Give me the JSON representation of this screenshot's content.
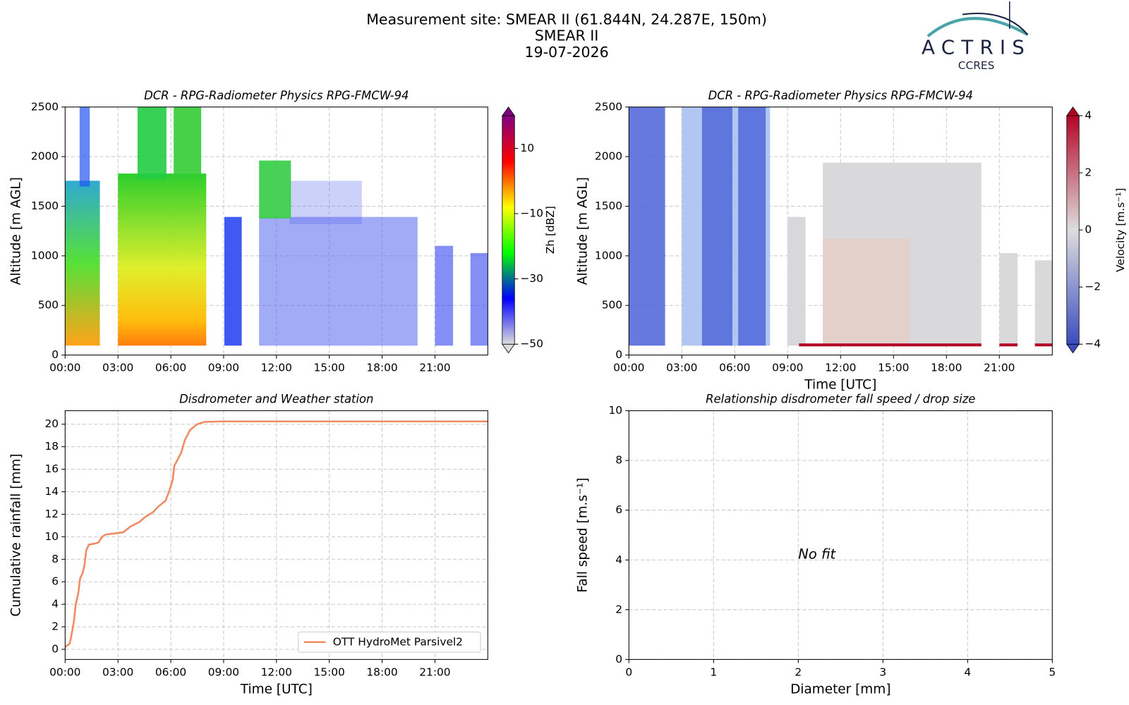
{
  "header": {
    "title_lines": [
      "Measurement site: SMEAR II (61.844N, 24.287E, 150m)",
      "SMEAR II",
      "19-07-2026"
    ],
    "logo": {
      "name": "ACTRIS",
      "sub": "CCRES"
    }
  },
  "chart_data": [
    {
      "type": "heatmap",
      "title": "DCR - RPG-Radiometer Physics RPG-FMCW-94",
      "ylabel": "Altitude [m AGL]",
      "xlim": [
        0,
        24
      ],
      "xticks": [
        {
          "value": 0,
          "label": "00:00"
        },
        {
          "value": 3,
          "label": "03:00"
        },
        {
          "value": 6,
          "label": "06:00"
        },
        {
          "value": 9,
          "label": "09:00"
        },
        {
          "value": 12,
          "label": "12:00"
        },
        {
          "value": 15,
          "label": "15:00"
        },
        {
          "value": 18,
          "label": "18:00"
        },
        {
          "value": 21,
          "label": "21:00"
        }
      ],
      "ylim": [
        0,
        2500
      ],
      "yticks": [
        0,
        500,
        1000,
        1500,
        2000,
        2500
      ],
      "grid": true,
      "colorbar": {
        "label": "Zh [dBZ]",
        "lim": [
          -50,
          20
        ],
        "ticks": [
          {
            "value": -50,
            "label": "−50"
          },
          {
            "value": -30,
            "label": "−30"
          },
          {
            "value": -10,
            "label": "−10"
          },
          10
        ],
        "colors": [
          "#dddddd",
          "#0000ff",
          "#00ff00",
          "#ffff00",
          "#ff0000",
          "#800080"
        ]
      }
    },
    {
      "type": "heatmap",
      "title": "DCR - RPG-Radiometer Physics RPG-FMCW-94",
      "ylabel": "Altitude [m AGL]",
      "xlabel": "Time [UTC]",
      "xlim": [
        0,
        24
      ],
      "xticks": [
        {
          "value": 0,
          "label": "00:00"
        },
        {
          "value": 3,
          "label": "03:00"
        },
        {
          "value": 6,
          "label": "06:00"
        },
        {
          "value": 9,
          "label": "09:00"
        },
        {
          "value": 12,
          "label": "12:00"
        },
        {
          "value": 15,
          "label": "15:00"
        },
        {
          "value": 18,
          "label": "18:00"
        },
        {
          "value": 21,
          "label": "21:00"
        }
      ],
      "ylim": [
        0,
        2500
      ],
      "yticks": [
        0,
        500,
        1000,
        1500,
        2000,
        2500
      ],
      "grid": true,
      "colorbar": {
        "label": "Velocity [m.s⁻¹]",
        "lim": [
          -4,
          4
        ],
        "ticks": [
          {
            "value": -4,
            "label": "−4"
          },
          {
            "value": -2,
            "label": "−2"
          },
          0,
          2,
          4
        ],
        "colors": [
          "#3b4cc0",
          "#dddddd",
          "#b40426"
        ]
      }
    },
    {
      "type": "line",
      "title": "Disdrometer and Weather station",
      "ylabel": "Cumulative rainfall [mm]",
      "xlabel": "Time [UTC]",
      "xlim": [
        0,
        24
      ],
      "xticks": [
        {
          "value": 0,
          "label": "00:00"
        },
        {
          "value": 3,
          "label": "03:00"
        },
        {
          "value": 6,
          "label": "06:00"
        },
        {
          "value": 9,
          "label": "09:00"
        },
        {
          "value": 12,
          "label": "12:00"
        },
        {
          "value": 15,
          "label": "15:00"
        },
        {
          "value": 18,
          "label": "18:00"
        },
        {
          "value": 21,
          "label": "21:00"
        }
      ],
      "ylim": [
        -0.9,
        21.2
      ],
      "yticks": [
        0,
        2,
        4,
        6,
        8,
        10,
        12,
        14,
        16,
        18,
        20
      ],
      "grid": true,
      "legend": "lower right",
      "x": [
        0,
        0.25,
        0.33,
        0.5,
        0.6,
        0.75,
        0.85,
        1.0,
        1.1,
        1.2,
        1.35,
        1.7,
        1.9,
        2.1,
        2.3,
        3.3,
        3.7,
        4.2,
        4.5,
        5.0,
        5.3,
        5.7,
        5.9,
        6.1,
        6.2,
        6.6,
        6.8,
        7.1,
        7.5,
        7.9,
        9,
        24
      ],
      "series": [
        {
          "name": "OTT HydroMet Parsivel2",
          "color": "#ef8a62",
          "values": [
            0.2,
            0.5,
            1,
            2.5,
            4,
            5,
            6.3,
            6.8,
            7.5,
            8.8,
            9.3,
            9.4,
            9.5,
            10,
            10.2,
            10.4,
            10.9,
            11.3,
            11.7,
            12.2,
            12.7,
            13.2,
            14,
            15,
            16.3,
            17.5,
            18.6,
            19.5,
            20,
            20.2,
            20.25,
            20.25
          ]
        }
      ]
    },
    {
      "type": "scatter",
      "title": "Relationship disdrometer fall speed / drop size",
      "ylabel": "Fall speed [m.s⁻¹]",
      "xlabel": "Diameter [mm]",
      "xlim": [
        0,
        5
      ],
      "xticks": [
        0,
        1,
        2,
        3,
        4,
        5
      ],
      "ylim": [
        0,
        10
      ],
      "yticks": [
        0,
        2,
        4,
        6,
        8,
        10
      ],
      "grid": true,
      "annotation": "No fit"
    }
  ]
}
